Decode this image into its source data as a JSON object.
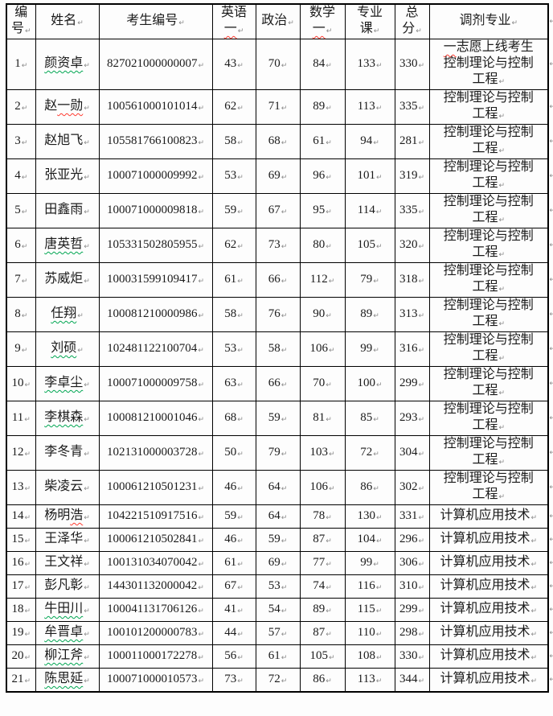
{
  "document": {
    "type": "word-table-screenshot",
    "paragraph_mark_glyph": "↵"
  },
  "colors": {
    "border": "#000000",
    "text": "#1a1a1a",
    "wavy_green": "#00a651",
    "wavy_red": "#ff3b30",
    "paragraph_mark": "#8a8a8a",
    "page_background": "#fdfdfd"
  },
  "table": {
    "headers": [
      {
        "id": "no",
        "label": "编号",
        "lines": [
          "编",
          "号"
        ]
      },
      {
        "id": "name",
        "label": "姓名",
        "lines": [
          "姓名"
        ]
      },
      {
        "id": "candidate-id",
        "label": "考生编号",
        "lines": [
          "考生编号"
        ]
      },
      {
        "id": "english",
        "label": "英语一",
        "lines": [
          "英语",
          "一"
        ],
        "wavy_line": 1
      },
      {
        "id": "politics",
        "label": "政治",
        "lines": [
          "政治"
        ]
      },
      {
        "id": "math",
        "label": "数学一",
        "lines": [
          "数学",
          "一"
        ],
        "wavy_line": 1
      },
      {
        "id": "major-course",
        "label": "专业课",
        "lines": [
          "专业",
          "课"
        ]
      },
      {
        "id": "total",
        "label": "总分",
        "lines": [
          "总",
          "分"
        ]
      },
      {
        "id": "transfer-major",
        "label": "调剂专业",
        "lines": [
          "调剂专业"
        ]
      }
    ],
    "rows": [
      {
        "no": "1",
        "name": "颜资卓",
        "wavy": "green",
        "id": "827021000000007",
        "english": "43",
        "politics": "70",
        "math": "84",
        "major": "133",
        "total": "330",
        "transfer_lines": [
          "一志愿上线考生",
          "控制理论与控制",
          "工程"
        ],
        "transfer_wavy_prefix": "一"
      },
      {
        "no": "2",
        "name": "赵一勋",
        "wavy": "red",
        "wavy_part": "一勋",
        "id": "100561000101014",
        "english": "62",
        "politics": "71",
        "math": "89",
        "major": "113",
        "total": "335",
        "transfer_lines": [
          "控制理论与控制",
          "工程"
        ]
      },
      {
        "no": "3",
        "name": "赵旭飞",
        "wavy": null,
        "id": "105581766100823",
        "english": "58",
        "politics": "68",
        "math": "61",
        "major": "94",
        "total": "281",
        "transfer_lines": [
          "控制理论与控制",
          "工程"
        ]
      },
      {
        "no": "4",
        "name": "张亚光",
        "wavy": null,
        "id": "100071000009992",
        "english": "53",
        "politics": "69",
        "math": "96",
        "major": "101",
        "total": "319",
        "transfer_lines": [
          "控制理论与控制",
          "工程"
        ]
      },
      {
        "no": "5",
        "name": "田鑫雨",
        "wavy": null,
        "id": "100071000009818",
        "english": "59",
        "politics": "67",
        "math": "95",
        "major": "114",
        "total": "335",
        "transfer_lines": [
          "控制理论与控制",
          "工程"
        ]
      },
      {
        "no": "6",
        "name": "唐英哲",
        "wavy": "green",
        "id": "105331502805955",
        "english": "62",
        "politics": "73",
        "math": "80",
        "major": "105",
        "total": "320",
        "transfer_lines": [
          "控制理论与控制",
          "工程"
        ]
      },
      {
        "no": "7",
        "name": "苏威炬",
        "wavy": null,
        "id": "100031599109417",
        "english": "61",
        "politics": "66",
        "math": "112",
        "major": "79",
        "total": "318",
        "transfer_lines": [
          "控制理论与控制",
          "工程"
        ]
      },
      {
        "no": "8",
        "name": "任翔",
        "wavy": "green",
        "id": "100081210000986",
        "english": "58",
        "politics": "76",
        "math": "90",
        "major": "89",
        "total": "313",
        "transfer_lines": [
          "控制理论与控制",
          "工程"
        ]
      },
      {
        "no": "9",
        "name": "刘硕",
        "wavy": "green",
        "id": "102481122100704",
        "english": "53",
        "politics": "58",
        "math": "106",
        "major": "99",
        "total": "316",
        "transfer_lines": [
          "控制理论与控制",
          "工程"
        ]
      },
      {
        "no": "10",
        "name": "李卓尘",
        "wavy": "green",
        "id": "100071000009758",
        "english": "63",
        "politics": "66",
        "math": "70",
        "major": "100",
        "total": "299",
        "transfer_lines": [
          "控制理论与控制",
          "工程"
        ]
      },
      {
        "no": "11",
        "name": "李棋森",
        "wavy": "green",
        "id": "100081210001046",
        "english": "68",
        "politics": "59",
        "math": "81",
        "major": "85",
        "total": "293",
        "transfer_lines": [
          "控制理论与控制",
          "工程"
        ]
      },
      {
        "no": "12",
        "name": "李冬青",
        "wavy": null,
        "id": "102131000003728",
        "english": "50",
        "politics": "79",
        "math": "103",
        "major": "72",
        "total": "304",
        "transfer_lines": [
          "控制理论与控制",
          "工程"
        ]
      },
      {
        "no": "13",
        "name": "柴凌云",
        "wavy": null,
        "id": "100061210501231",
        "english": "46",
        "politics": "64",
        "math": "106",
        "major": "86",
        "total": "302",
        "transfer_lines": [
          "控制理论与控制",
          "工程"
        ]
      },
      {
        "no": "14",
        "name": "杨明浩",
        "wavy": "red",
        "wavy_part": "浩",
        "id": "104221510917516",
        "english": "59",
        "politics": "64",
        "math": "78",
        "major": "130",
        "total": "331",
        "transfer_lines": [
          "计算机应用技术"
        ]
      },
      {
        "no": "15",
        "name": "王泽华",
        "wavy": null,
        "id": "100061210502841",
        "english": "46",
        "politics": "59",
        "math": "87",
        "major": "104",
        "total": "296",
        "transfer_lines": [
          "计算机应用技术"
        ]
      },
      {
        "no": "16",
        "name": "王文祥",
        "wavy": null,
        "id": "100131034070042",
        "english": "61",
        "politics": "69",
        "math": "77",
        "major": "99",
        "total": "306",
        "transfer_lines": [
          "计算机应用技术"
        ]
      },
      {
        "no": "17",
        "name": "彭凡彰",
        "wavy": null,
        "id": "144301132000042",
        "english": "67",
        "politics": "53",
        "math": "74",
        "major": "116",
        "total": "310",
        "transfer_lines": [
          "计算机应用技术"
        ]
      },
      {
        "no": "18",
        "name": "牛田川",
        "wavy": "green",
        "id": "100041131706126",
        "english": "41",
        "politics": "54",
        "math": "89",
        "major": "115",
        "total": "299",
        "transfer_lines": [
          "计算机应用技术"
        ]
      },
      {
        "no": "19",
        "name": "牟晋卓",
        "wavy": "green",
        "id": "100101200000783",
        "english": "44",
        "politics": "57",
        "math": "87",
        "major": "110",
        "total": "298",
        "transfer_lines": [
          "计算机应用技术"
        ]
      },
      {
        "no": "20",
        "name": "柳江斧",
        "wavy": "green",
        "id": "100011000172278",
        "english": "56",
        "politics": "61",
        "math": "105",
        "major": "108",
        "total": "330",
        "transfer_lines": [
          "计算机应用技术"
        ]
      },
      {
        "no": "21",
        "name": "陈思延",
        "wavy": "green",
        "id": "100071000010573",
        "english": "73",
        "politics": "72",
        "math": "86",
        "major": "113",
        "total": "344",
        "transfer_lines": [
          "计算机应用技术"
        ]
      }
    ]
  }
}
